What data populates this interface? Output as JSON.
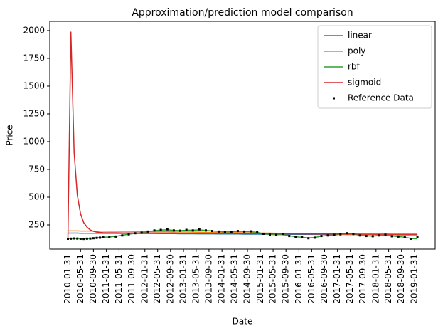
{
  "chart_data": {
    "type": "line",
    "title": "Approximation/prediction model comparison",
    "x_label": "Date",
    "y_label": "Price",
    "x": [
      "2010-01-31",
      "2010-02-28",
      "2010-03-31",
      "2010-04-30",
      "2010-05-31",
      "2010-06-30",
      "2010-07-31",
      "2010-08-31",
      "2010-09-30",
      "2010-10-31",
      "2010-11-30",
      "2010-12-31",
      "2011-02-28",
      "2011-04-30",
      "2011-06-30",
      "2011-08-31",
      "2011-10-31",
      "2011-12-31",
      "2012-02-29",
      "2012-04-30",
      "2012-06-30",
      "2012-08-31",
      "2012-10-31",
      "2012-12-31",
      "2013-02-28",
      "2013-04-30",
      "2013-06-30",
      "2013-08-31",
      "2013-10-31",
      "2013-12-31",
      "2014-02-28",
      "2014-04-30",
      "2014-06-30",
      "2014-08-31",
      "2014-10-31",
      "2014-12-31",
      "2015-02-28",
      "2015-04-30",
      "2015-06-30",
      "2015-08-31",
      "2015-10-31",
      "2015-12-31",
      "2016-02-29",
      "2016-04-30",
      "2016-06-30",
      "2016-08-31",
      "2016-10-31",
      "2016-12-31",
      "2017-02-28",
      "2017-04-30",
      "2017-06-30",
      "2017-08-31",
      "2017-10-31",
      "2017-12-31",
      "2018-02-28",
      "2018-04-30",
      "2018-06-30",
      "2018-08-31",
      "2018-10-31",
      "2018-12-31",
      "2019-02-28"
    ],
    "series": [
      {
        "name": "linear",
        "color": "#1f77b4",
        "kind": "line",
        "values": [
          176,
          176,
          176,
          176,
          175,
          175,
          175,
          175,
          175,
          175,
          175,
          174,
          174,
          174,
          173,
          173,
          173,
          172,
          172,
          172,
          171,
          171,
          171,
          170,
          170,
          170,
          169,
          169,
          169,
          168,
          168,
          168,
          168,
          167,
          167,
          167,
          166,
          166,
          166,
          166,
          165,
          165,
          165,
          165,
          164,
          164,
          164,
          164,
          164,
          163,
          163,
          163,
          163,
          163,
          162,
          162,
          162,
          162,
          162,
          162,
          162
        ]
      },
      {
        "name": "poly",
        "color": "#ff7f0e",
        "kind": "line",
        "values": [
          196,
          196,
          196,
          196,
          195,
          195,
          195,
          195,
          195,
          194,
          194,
          194,
          193,
          193,
          192,
          192,
          191,
          190,
          190,
          189,
          188,
          188,
          187,
          186,
          186,
          185,
          184,
          183,
          183,
          182,
          181,
          180,
          180,
          179,
          178,
          177,
          176,
          176,
          175,
          174,
          173,
          172,
          171,
          171,
          170,
          169,
          168,
          167,
          166,
          166,
          165,
          164,
          163,
          162,
          162,
          161,
          160,
          159,
          159,
          158,
          157
        ]
      },
      {
        "name": "rbf",
        "color": "#2ca02c",
        "kind": "line",
        "values": [
          127,
          127,
          128,
          128,
          127,
          126,
          127,
          128,
          131,
          134,
          136,
          139,
          141,
          147,
          157,
          166,
          174,
          181,
          189,
          198,
          204,
          206,
          201,
          199,
          202,
          203,
          205,
          200,
          196,
          191,
          187,
          189,
          192,
          191,
          189,
          183,
          171,
          164,
          162,
          163,
          152,
          143,
          139,
          133,
          137,
          149,
          155,
          159,
          166,
          172,
          167,
          157,
          151,
          149,
          154,
          158,
          150,
          145,
          139,
          128,
          124
        ]
      },
      {
        "name": "sigmoid",
        "color": "#d62728",
        "kind": "line",
        "values": [
          125,
          1990,
          900,
          520,
          350,
          270,
          230,
          205,
          192,
          185,
          182,
          180,
          179,
          179,
          178,
          178,
          178,
          177,
          177,
          177,
          176,
          176,
          176,
          175,
          175,
          175,
          174,
          174,
          174,
          173,
          173,
          173,
          172,
          172,
          172,
          171,
          171,
          171,
          170,
          170,
          170,
          170,
          169,
          169,
          169,
          169,
          168,
          168,
          168,
          168,
          168,
          167,
          167,
          167,
          167,
          167,
          166,
          166,
          166,
          166,
          166
        ]
      },
      {
        "name": "Reference Data",
        "color": "#000000",
        "kind": "scatter",
        "values": [
          125,
          126,
          128,
          127,
          125,
          124,
          126,
          127,
          130,
          133,
          135,
          138,
          140,
          145,
          155,
          165,
          175,
          180,
          190,
          200,
          205,
          210,
          200,
          198,
          205,
          200,
          210,
          200,
          195,
          190,
          185,
          188,
          195,
          190,
          192,
          185,
          170,
          162,
          160,
          168,
          150,
          140,
          138,
          130,
          135,
          150,
          155,
          160,
          165,
          175,
          168,
          155,
          150,
          148,
          155,
          162,
          148,
          145,
          140,
          125,
          138
        ]
      }
    ],
    "xlim": [
      "2009-08-12",
      "2019-08-15"
    ],
    "xticks": [
      "2010-01-31",
      "2010-05-31",
      "2010-09-30",
      "2011-01-31",
      "2011-05-31",
      "2011-09-30",
      "2012-01-31",
      "2012-05-31",
      "2012-09-30",
      "2013-01-31",
      "2013-05-31",
      "2013-09-30",
      "2014-01-31",
      "2014-05-31",
      "2014-09-30",
      "2015-01-31",
      "2015-05-31",
      "2015-09-30",
      "2016-01-31",
      "2016-05-31",
      "2016-09-30",
      "2017-01-31",
      "2017-05-31",
      "2017-09-30",
      "2018-01-31",
      "2018-05-31",
      "2018-09-30",
      "2019-01-31"
    ],
    "ylim": [
      32,
      2083
    ],
    "yticks": [
      250,
      500,
      750,
      1000,
      1250,
      1500,
      1750,
      2000
    ],
    "legend": "upper right",
    "grid": false
  }
}
